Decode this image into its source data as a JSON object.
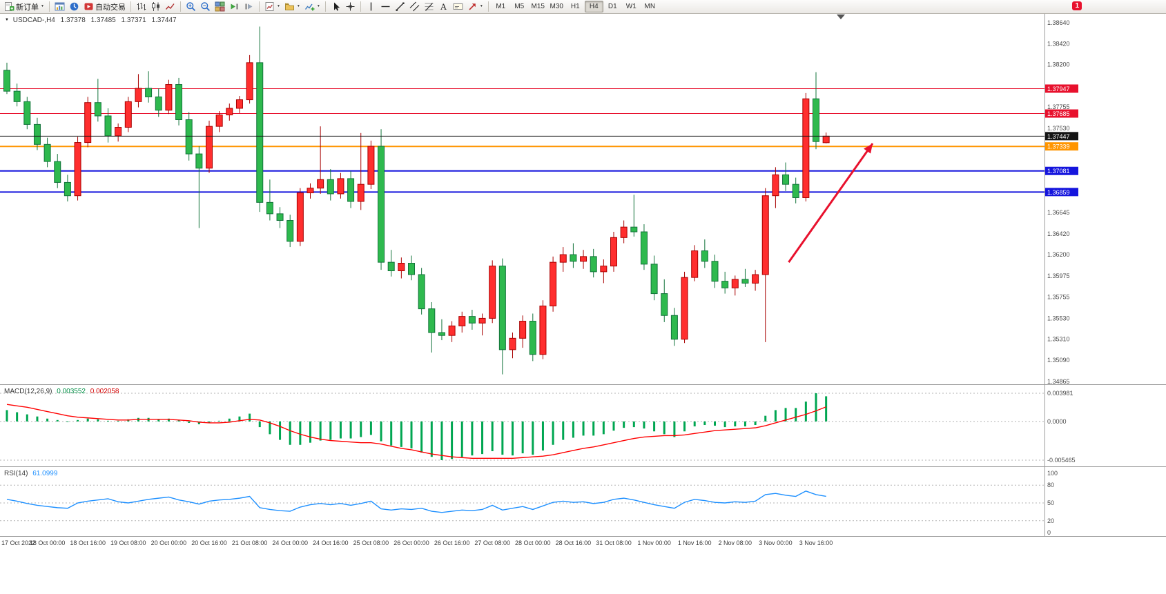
{
  "toolbar": {
    "buttons": [
      {
        "name": "new-order",
        "icon": "new-order",
        "label": "新订单",
        "caret": true
      },
      {
        "sep": true
      },
      {
        "name": "chart-window",
        "icon": "chart-window"
      },
      {
        "name": "market-watch",
        "icon": "market-watch"
      },
      {
        "name": "autotrading",
        "icon": "autotrading",
        "label": "自动交易"
      },
      {
        "sep": true
      },
      {
        "name": "bar-chart-type",
        "icon": "bars"
      },
      {
        "name": "candlestick-type",
        "icon": "candles"
      },
      {
        "name": "line-chart-type",
        "icon": "line-chart"
      },
      {
        "sep": true
      },
      {
        "name": "zoom-in",
        "icon": "zoom-in"
      },
      {
        "name": "zoom-out",
        "icon": "zoom-out"
      },
      {
        "name": "tile-windows",
        "icon": "tile"
      },
      {
        "name": "auto-scroll",
        "icon": "auto-scroll"
      },
      {
        "name": "chart-shift",
        "icon": "chart-shift"
      },
      {
        "sep": true
      },
      {
        "name": "new-chart",
        "icon": "new-chart",
        "caret": true
      },
      {
        "name": "profiles",
        "icon": "profiles",
        "caret": true
      },
      {
        "name": "indicators",
        "icon": "indicators",
        "caret": true
      },
      {
        "sep": true
      },
      {
        "name": "cursor",
        "icon": "cursor"
      },
      {
        "name": "crosshair",
        "icon": "crosshair"
      },
      {
        "sep": true
      },
      {
        "name": "vertical-line",
        "icon": "vline"
      },
      {
        "name": "horizontal-line",
        "icon": "hline"
      },
      {
        "name": "trendline",
        "icon": "trendline"
      },
      {
        "name": "equidistant-channel",
        "icon": "channel"
      },
      {
        "name": "fibonacci",
        "icon": "fibonacci"
      },
      {
        "name": "text",
        "icon": "text"
      },
      {
        "name": "text-label",
        "icon": "label"
      },
      {
        "name": "arrows",
        "icon": "arrow-tool",
        "caret": true
      },
      {
        "sep": true
      }
    ],
    "timeframes": [
      "M1",
      "M5",
      "M15",
      "M30",
      "H1",
      "H4",
      "D1",
      "W1",
      "MN"
    ],
    "active_timeframe": "H4",
    "notification_count": "1"
  },
  "chart_header": {
    "marker": "▼",
    "symbol_period": "USDCAD-,H4",
    "open": "1.37378",
    "high": "1.37485",
    "low": "1.37371",
    "close": "1.37447"
  },
  "indicators": {
    "macd": {
      "title": "MACD(12,26,9)",
      "main_value": "0.003552",
      "signal_value": "0.002058"
    },
    "rsi": {
      "title": "RSI(14)",
      "value": "61.0999"
    }
  },
  "chart_data": [
    {
      "type": "candlestick",
      "symbol": "USDCAD-",
      "period": "H4",
      "up_color": "#ff2e2e",
      "up_edge": "#a80000",
      "down_color": "#2eb94e",
      "down_edge": "#12733a",
      "y_range": [
        1.34865,
        1.3864
      ],
      "axis_labels": [
        1.3864,
        1.3842,
        1.382,
        1.37755,
        1.3753,
        1.36645,
        1.3642,
        1.362,
        1.35975,
        1.35755,
        1.3553,
        1.3531,
        1.3509,
        1.34865
      ],
      "hlines": [
        {
          "price": 1.37947,
          "label": "1.37947",
          "color": "#e8112d",
          "width": 1
        },
        {
          "price": 1.37685,
          "label": "1.37685",
          "color": "#e8112d",
          "width": 1
        },
        {
          "price": 1.37447,
          "label": "1.37447",
          "color": "#141414",
          "width": 1,
          "role": "current-price"
        },
        {
          "price": 1.37339,
          "label": "1.37339",
          "color": "#ff9500",
          "width": 2
        },
        {
          "price": 1.37081,
          "label": "1.37081",
          "color": "#1515dd",
          "width": 2
        },
        {
          "price": 1.36859,
          "label": "1.36859",
          "color": "#1515dd",
          "width": 2
        }
      ],
      "trend_arrow": {
        "from_bar": 77.3,
        "from_price": 1.3612,
        "to_bar": 85.6,
        "to_price": 1.3737,
        "color": "#e8112d"
      },
      "x_label_step": 4,
      "x_labels": [
        "17 Oct 2022",
        "18 Oct 00:00",
        "18 Oct 16:00",
        "19 Oct 08:00",
        "20 Oct 00:00",
        "20 Oct 16:00",
        "21 Oct 08:00",
        "24 Oct 00:00",
        "24 Oct 16:00",
        "25 Oct 08:00",
        "26 Oct 00:00",
        "26 Oct 16:00",
        "27 Oct 08:00",
        "28 Oct 00:00",
        "28 Oct 16:00",
        "31 Oct 08:00",
        "1 Nov 00:00",
        "1 Nov 16:00",
        "2 Nov 08:00",
        "3 Nov 00:00",
        "3 Nov 16:00"
      ],
      "candles": [
        [
          1.3814,
          1.3822,
          1.3789,
          1.3792
        ],
        [
          1.3792,
          1.38,
          1.3776,
          1.3781
        ],
        [
          1.3781,
          1.3786,
          1.3752,
          1.3757
        ],
        [
          1.3757,
          1.3764,
          1.373,
          1.3736
        ],
        [
          1.3736,
          1.3743,
          1.3712,
          1.3718
        ],
        [
          1.3718,
          1.3726,
          1.369,
          1.3696
        ],
        [
          1.3696,
          1.3704,
          1.3676,
          1.3682
        ],
        [
          1.3682,
          1.3744,
          1.3677,
          1.3738
        ],
        [
          1.3738,
          1.3786,
          1.3733,
          1.378
        ],
        [
          1.378,
          1.3805,
          1.376,
          1.3766
        ],
        [
          1.3766,
          1.3774,
          1.3738,
          1.3745
        ],
        [
          1.3745,
          1.3758,
          1.3739,
          1.3754
        ],
        [
          1.3754,
          1.3786,
          1.3749,
          1.3781
        ],
        [
          1.3781,
          1.381,
          1.3775,
          1.3795
        ],
        [
          1.3795,
          1.3813,
          1.378,
          1.3786
        ],
        [
          1.3786,
          1.3795,
          1.3765,
          1.3772
        ],
        [
          1.3772,
          1.3804,
          1.3768,
          1.3799
        ],
        [
          1.3799,
          1.3806,
          1.3756,
          1.3762
        ],
        [
          1.3762,
          1.377,
          1.3719,
          1.3726
        ],
        [
          1.3726,
          1.3734,
          1.3648,
          1.3711
        ],
        [
          1.3711,
          1.3761,
          1.3706,
          1.3755
        ],
        [
          1.3755,
          1.3771,
          1.3749,
          1.3767
        ],
        [
          1.3767,
          1.3779,
          1.3761,
          1.3774
        ],
        [
          1.3774,
          1.3787,
          1.3769,
          1.3783
        ],
        [
          1.3783,
          1.383,
          1.3779,
          1.3822
        ],
        [
          1.3822,
          1.386,
          1.3665,
          1.3675
        ],
        [
          1.3675,
          1.3699,
          1.3656,
          1.3663
        ],
        [
          1.3663,
          1.367,
          1.3648,
          1.3656
        ],
        [
          1.3656,
          1.3662,
          1.3628,
          1.3634
        ],
        [
          1.3634,
          1.369,
          1.3629,
          1.3685
        ],
        [
          1.3685,
          1.3695,
          1.3679,
          1.369
        ],
        [
          1.369,
          1.3755,
          1.3684,
          1.3699
        ],
        [
          1.3699,
          1.371,
          1.3677,
          1.3684
        ],
        [
          1.3684,
          1.3706,
          1.3679,
          1.37
        ],
        [
          1.37,
          1.3708,
          1.3669,
          1.3676
        ],
        [
          1.3676,
          1.3748,
          1.3667,
          1.3694
        ],
        [
          1.3694,
          1.374,
          1.3689,
          1.3734
        ],
        [
          1.3734,
          1.3752,
          1.3604,
          1.3612
        ],
        [
          1.3612,
          1.3625,
          1.3597,
          1.3603
        ],
        [
          1.3603,
          1.3617,
          1.3595,
          1.3611
        ],
        [
          1.3611,
          1.3619,
          1.3593,
          1.3599
        ],
        [
          1.3599,
          1.3606,
          1.3557,
          1.3563
        ],
        [
          1.3563,
          1.357,
          1.3517,
          1.3538
        ],
        [
          1.3538,
          1.3552,
          1.353,
          1.3535
        ],
        [
          1.3535,
          1.355,
          1.3528,
          1.3545
        ],
        [
          1.3545,
          1.356,
          1.3538,
          1.3555
        ],
        [
          1.3555,
          1.3562,
          1.3541,
          1.3548
        ],
        [
          1.3548,
          1.3558,
          1.3535,
          1.3553
        ],
        [
          1.3553,
          1.3614,
          1.3548,
          1.3608
        ],
        [
          1.3608,
          1.3616,
          1.3494,
          1.352
        ],
        [
          1.352,
          1.3538,
          1.3511,
          1.3532
        ],
        [
          1.3532,
          1.3556,
          1.3522,
          1.355
        ],
        [
          1.355,
          1.3558,
          1.3508,
          1.3515
        ],
        [
          1.3515,
          1.3572,
          1.351,
          1.3566
        ],
        [
          1.3566,
          1.3618,
          1.356,
          1.3612
        ],
        [
          1.3612,
          1.3628,
          1.3602,
          1.362
        ],
        [
          1.362,
          1.3632,
          1.3606,
          1.3613
        ],
        [
          1.3613,
          1.3625,
          1.3605,
          1.3618
        ],
        [
          1.3618,
          1.3626,
          1.3596,
          1.3602
        ],
        [
          1.3602,
          1.3615,
          1.359,
          1.3608
        ],
        [
          1.3608,
          1.3644,
          1.3602,
          1.3638
        ],
        [
          1.3638,
          1.3656,
          1.3632,
          1.3649
        ],
        [
          1.3649,
          1.3683,
          1.3639,
          1.3644
        ],
        [
          1.3644,
          1.3652,
          1.3604,
          1.361
        ],
        [
          1.361,
          1.3619,
          1.3572,
          1.3579
        ],
        [
          1.3579,
          1.3594,
          1.3549,
          1.3556
        ],
        [
          1.3556,
          1.3564,
          1.3524,
          1.3531
        ],
        [
          1.3531,
          1.3602,
          1.3527,
          1.3596
        ],
        [
          1.3596,
          1.363,
          1.3592,
          1.3624
        ],
        [
          1.3624,
          1.3636,
          1.3606,
          1.3613
        ],
        [
          1.3613,
          1.362,
          1.3585,
          1.3592
        ],
        [
          1.3592,
          1.3602,
          1.3579,
          1.3585
        ],
        [
          1.3585,
          1.3598,
          1.3577,
          1.3594
        ],
        [
          1.3594,
          1.3605,
          1.3586,
          1.359
        ],
        [
          1.359,
          1.3604,
          1.3582,
          1.3599
        ],
        [
          1.3599,
          1.369,
          1.3528,
          1.3682
        ],
        [
          1.3682,
          1.3712,
          1.3669,
          1.3704
        ],
        [
          1.3704,
          1.3717,
          1.3687,
          1.3694
        ],
        [
          1.3694,
          1.3701,
          1.3674,
          1.368
        ],
        [
          1.368,
          1.379,
          1.3676,
          1.3784
        ],
        [
          1.3784,
          1.3812,
          1.3731,
          1.3739
        ],
        [
          1.37378,
          1.37485,
          1.37371,
          1.37447
        ]
      ]
    },
    {
      "type": "macd",
      "title": "MACD(12,26,9)",
      "histogram_color": "#00a651",
      "signal_color": "#ff0000",
      "y_range": [
        -0.005465,
        0.003981
      ],
      "axis_labels": [
        {
          "text": "0.003981",
          "value": 0.003981
        },
        {
          "text": "0.0000",
          "value": 0
        },
        {
          "text": "-0.005465",
          "value": -0.005465
        }
      ],
      "histogram": [
        0.0016,
        0.0013,
        0.001,
        0.0007,
        0.0004,
        0.0002,
        0.0,
        0.0002,
        0.0004,
        0.0003,
        0.0001,
        0.0001,
        0.0003,
        0.0005,
        0.0005,
        0.0003,
        0.0004,
        0.0002,
        -0.0002,
        -0.0004,
        -0.0002,
        0.0001,
        0.0004,
        0.0007,
        0.0011,
        -0.0008,
        -0.0018,
        -0.0026,
        -0.0033,
        -0.0033,
        -0.003,
        -0.0027,
        -0.0026,
        -0.0024,
        -0.0024,
        -0.0022,
        -0.0019,
        -0.0028,
        -0.0034,
        -0.0036,
        -0.0038,
        -0.0044,
        -0.005,
        -0.005465,
        -0.0053,
        -0.005,
        -0.0048,
        -0.0046,
        -0.0042,
        -0.0047,
        -0.0048,
        -0.0045,
        -0.0047,
        -0.0041,
        -0.0033,
        -0.0026,
        -0.0023,
        -0.002,
        -0.002,
        -0.0018,
        -0.0013,
        -0.0009,
        -0.0008,
        -0.001,
        -0.0014,
        -0.0018,
        -0.0022,
        -0.0014,
        -0.0007,
        -0.0005,
        -0.0006,
        -0.0008,
        -0.0007,
        -0.0007,
        -0.0005,
        0.0008,
        0.0016,
        0.0019,
        0.0019,
        0.0028,
        0.003981,
        0.003552
      ],
      "signal": [
        0.0024,
        0.0022,
        0.002,
        0.0017,
        0.0014,
        0.0011,
        0.0008,
        0.0006,
        0.0005,
        0.0004,
        0.0003,
        0.0002,
        0.0002,
        0.0003,
        0.0003,
        0.0003,
        0.0003,
        0.0002,
        0.0001,
        -0.0001,
        -0.0002,
        -0.0002,
        -0.0001,
        0.0001,
        0.0003,
        0.0002,
        -0.0002,
        -0.0007,
        -0.0013,
        -0.0018,
        -0.0022,
        -0.0025,
        -0.0027,
        -0.0028,
        -0.0029,
        -0.003,
        -0.003,
        -0.0032,
        -0.0035,
        -0.0038,
        -0.004,
        -0.0043,
        -0.0046,
        -0.0048,
        -0.005,
        -0.0051,
        -0.0052,
        -0.0052,
        -0.0052,
        -0.0052,
        -0.0052,
        -0.0051,
        -0.005,
        -0.0049,
        -0.0047,
        -0.0044,
        -0.0041,
        -0.0038,
        -0.0036,
        -0.0033,
        -0.003,
        -0.0027,
        -0.0024,
        -0.0022,
        -0.0021,
        -0.002,
        -0.002,
        -0.0019,
        -0.0017,
        -0.0015,
        -0.0013,
        -0.0012,
        -0.0011,
        -0.001,
        -0.0009,
        -0.0006,
        -0.0002,
        0.0002,
        0.0006,
        0.001,
        0.0015,
        0.002058
      ]
    },
    {
      "type": "rsi",
      "title": "RSI(14)",
      "line_color": "#1e90ff",
      "y_range": [
        0,
        100
      ],
      "levels": [
        80,
        50,
        20
      ],
      "axis_labels": [
        {
          "text": "100",
          "value": 100
        },
        {
          "text": "80",
          "value": 80
        },
        {
          "text": "50",
          "value": 50
        },
        {
          "text": "20",
          "value": 20
        },
        {
          "text": "0",
          "value": 0
        }
      ],
      "values": [
        56,
        53,
        49,
        46,
        44,
        42,
        41,
        50,
        53,
        55,
        57,
        52,
        50,
        53,
        56,
        58,
        60,
        55,
        52,
        48,
        53,
        55,
        56,
        58,
        61,
        42,
        39,
        37,
        36,
        43,
        47,
        49,
        47,
        49,
        46,
        49,
        53,
        40,
        38,
        40,
        39,
        41,
        36,
        34,
        36,
        38,
        37,
        39,
        46,
        38,
        41,
        44,
        39,
        45,
        51,
        53,
        51,
        52,
        49,
        51,
        56,
        58,
        55,
        51,
        47,
        44,
        41,
        51,
        56,
        54,
        51,
        50,
        52,
        51,
        53,
        64,
        66,
        63,
        61,
        70,
        64,
        61.1
      ]
    }
  ]
}
